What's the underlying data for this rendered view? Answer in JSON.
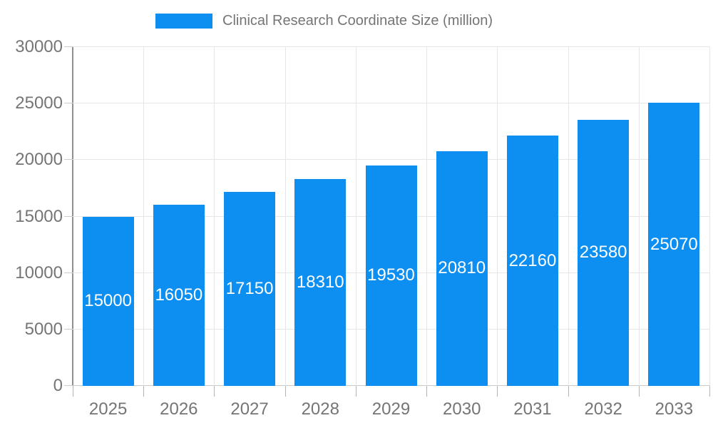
{
  "legend": {
    "label": "Clinical Research Coordinate Size (million)"
  },
  "chart_data": {
    "type": "bar",
    "title": "Clinical Research Coordinate Size (million)",
    "categories": [
      "2025",
      "2026",
      "2027",
      "2028",
      "2029",
      "2030",
      "2031",
      "2032",
      "2033"
    ],
    "values": [
      15000,
      16050,
      17150,
      18310,
      19530,
      20810,
      22160,
      23580,
      25070
    ],
    "xlabel": "",
    "ylabel": "",
    "ylim": [
      0,
      30000
    ],
    "yticks": [
      0,
      5000,
      10000,
      15000,
      20000,
      25000,
      30000
    ],
    "grid": true,
    "legend_position": "top",
    "bar_color": "#0d8ff2",
    "bar_value_label_color": "#ffffff",
    "axis_text_color": "#757575",
    "gridline_color": "#e6e6e6"
  }
}
